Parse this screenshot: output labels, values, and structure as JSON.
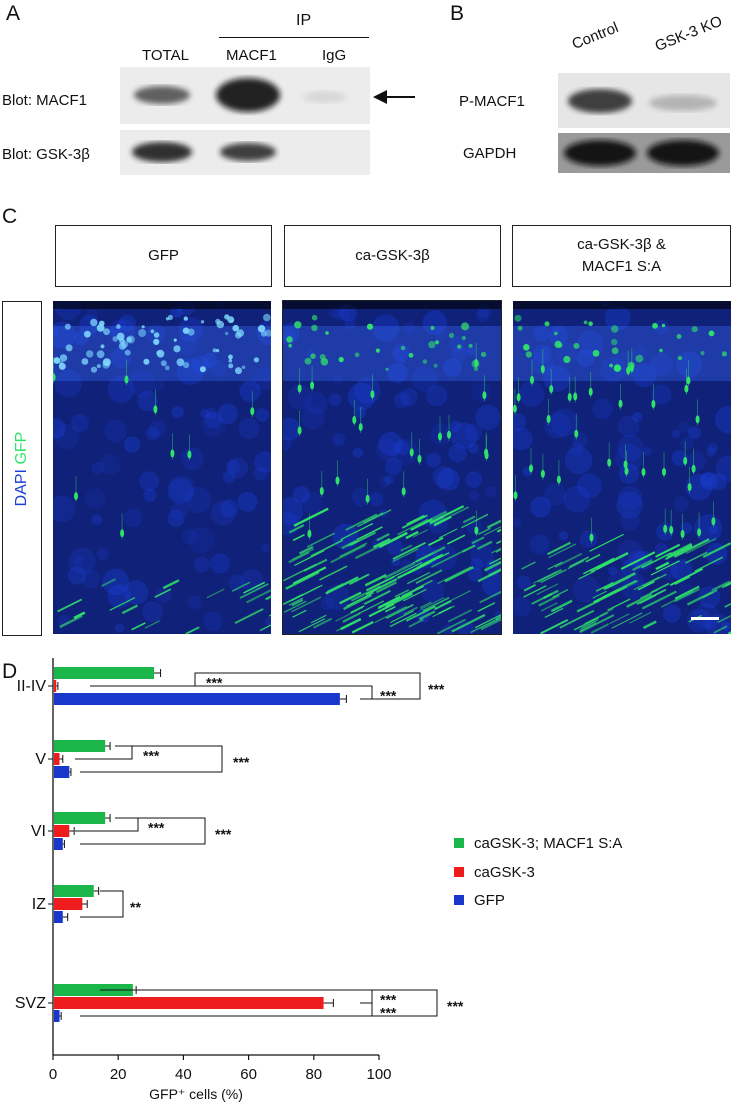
{
  "panel_a": {
    "label": "A",
    "ip_header": "IP",
    "lane_total": "TOTAL",
    "lane_macf1": "MACF1",
    "lane_igg": "IgG",
    "blot_macf1": "Blot: MACF1",
    "blot_gsk": "Blot: GSK-3β"
  },
  "panel_b": {
    "label": "B",
    "lane_control": "Control",
    "lane_ko": "GSK-3 KO",
    "row_pmacf1": "P-MACF1",
    "row_gapdh": "GAPDH"
  },
  "panel_c": {
    "label": "C",
    "cond_gfp": "GFP",
    "cond_ca": "ca-GSK-3β",
    "cond_ca_line1": "ca-GSK-3β &",
    "cond_ca_line2": "MACF1 S:A",
    "stain_dapi": "DAPI",
    "stain_gfp": "GFP",
    "colors": {
      "dapi": "#1a3fd6",
      "gfp": "#2fe36a"
    }
  },
  "panel_d": {
    "label": "D"
  },
  "chart_data": {
    "type": "bar",
    "orientation": "horizontal",
    "categories": [
      "II-IV",
      "V",
      "VI",
      "IZ",
      "SVZ"
    ],
    "series": [
      {
        "name": "caGSK-3; MACF1 S:A",
        "color": "#1ab64a",
        "values": [
          31,
          16,
          16,
          12.5,
          24.5
        ],
        "errors": [
          2,
          1.5,
          1.5,
          1.5,
          1
        ]
      },
      {
        "name": "caGSK-3",
        "color": "#ee1c1c",
        "values": [
          1,
          2,
          5,
          9,
          83
        ],
        "errors": [
          0.5,
          1,
          1.5,
          1.5,
          3
        ]
      },
      {
        "name": "GFP",
        "color": "#1a37cc",
        "values": [
          88,
          5,
          3,
          3,
          2
        ],
        "errors": [
          2,
          0.5,
          0.5,
          1.5,
          0.5
        ]
      }
    ],
    "xlabel": "GFP⁺ cells (%)",
    "xlim": [
      0,
      100
    ],
    "xticks": [
      "0",
      "20",
      "40",
      "60",
      "80",
      "100"
    ],
    "significance": {
      "II-IV": [
        {
          "pair": [
            "caGSK-3; MACF1 S:A",
            "caGSK-3"
          ],
          "label": "***"
        },
        {
          "pair": [
            "caGSK-3",
            "GFP"
          ],
          "label": "***"
        },
        {
          "pair": [
            "caGSK-3; MACF1 S:A",
            "GFP"
          ],
          "label": "***"
        }
      ],
      "V": [
        {
          "pair": [
            "caGSK-3; MACF1 S:A",
            "caGSK-3"
          ],
          "label": "***"
        },
        {
          "pair": [
            "caGSK-3; MACF1 S:A",
            "GFP"
          ],
          "label": "***"
        }
      ],
      "VI": [
        {
          "pair": [
            "caGSK-3; MACF1 S:A",
            "caGSK-3"
          ],
          "label": "***"
        },
        {
          "pair": [
            "caGSK-3; MACF1 S:A",
            "GFP"
          ],
          "label": "***"
        }
      ],
      "IZ": [
        {
          "pair": [
            "caGSK-3; MACF1 S:A",
            "GFP"
          ],
          "label": "**"
        }
      ],
      "SVZ": [
        {
          "pair": [
            "caGSK-3; MACF1 S:A",
            "caGSK-3"
          ],
          "label": "***"
        },
        {
          "pair": [
            "caGSK-3",
            "GFP"
          ],
          "label": "***"
        },
        {
          "pair": [
            "caGSK-3; MACF1 S:A",
            "GFP"
          ],
          "label": "***"
        }
      ]
    },
    "legend_position": "right"
  }
}
